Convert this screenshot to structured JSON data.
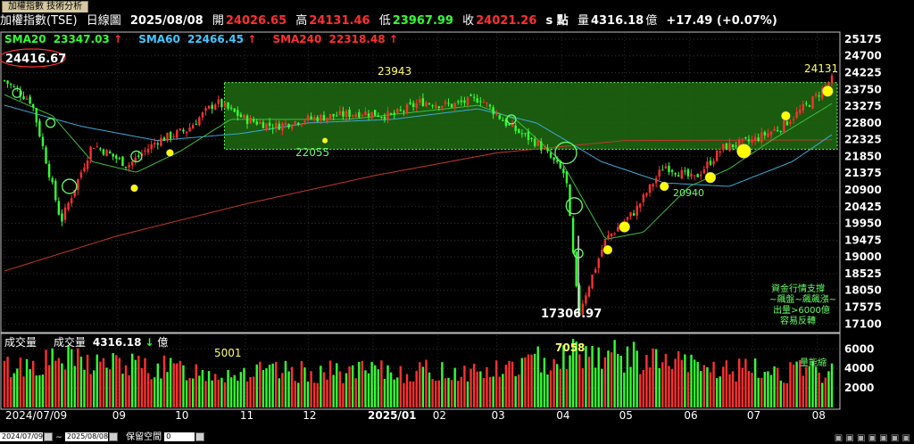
{
  "tab": {
    "label": "加權指數 技術分析"
  },
  "header": {
    "name": "加權指數(TSE)",
    "period": "日線圖",
    "date": "2025/08/08",
    "open_label": "開",
    "open": "24026.65",
    "high_label": "高",
    "high": "24131.46",
    "low_label": "低",
    "low": "23967.99",
    "close_label": "收",
    "close": "24021.26",
    "unit": "s 點",
    "volume_label": "量",
    "volume": "4316.18",
    "volume_unit": "億",
    "change": "+17.49 (+0.07%)"
  },
  "legend": {
    "sma20": {
      "label": "SMA20",
      "value": "23347.03",
      "arrow": "↑",
      "color": "#33ff33"
    },
    "sma60": {
      "label": "SMA60",
      "value": "22466.45",
      "arrow": "↑",
      "color": "#40c8ff"
    },
    "sma240": {
      "label": "SMA240",
      "value": "22318.48",
      "arrow": "↑",
      "color": "#ff3030"
    }
  },
  "volume_panel": {
    "title": "成交量",
    "legend_label": "成交量",
    "legend_value": "4316.18",
    "legend_arrow": "↓",
    "legend_unit": "億"
  },
  "annotations": {
    "prev_high": "24416.67",
    "box_top": "23943",
    "box_bottom": "22055",
    "last_high": "24131",
    "low_point": "17306.97",
    "low_2": "20940",
    "vol_label_1": "5001",
    "vol_label_2": "7058",
    "vol_note": "量能縮",
    "note_lines": [
      "資金行情支撐",
      "~飆盤~飆飆漲~",
      "出量>6000億",
      "容易反轉"
    ]
  },
  "colors": {
    "up": "#ff3030",
    "down": "#33ff33",
    "box": "#1f6b12",
    "box_border": "#66ff66",
    "marker": "#ffff00"
  },
  "chart_data": {
    "type": "line",
    "title": "加權指數(TSE) 日線圖",
    "price_axis": {
      "ticks": [
        25175,
        24700,
        24225,
        23750,
        23275,
        22800,
        22325,
        21850,
        21375,
        20900,
        20425,
        19950,
        19475,
        19000,
        18525,
        18050,
        17575,
        17100
      ],
      "range": [
        16880,
        25350
      ]
    },
    "volume_axis": {
      "ticks": [
        6000,
        4000,
        2000
      ],
      "range": [
        0,
        7400
      ]
    },
    "x_axis": {
      "start": "2024-07-09",
      "end": "2025-08-08",
      "labels": [
        "2024/07/09",
        "09",
        "10",
        "11",
        "12",
        "2025/01",
        "02",
        "03",
        "04",
        "05",
        "06",
        "07",
        "08"
      ]
    },
    "series": [
      {
        "name": "加權指數",
        "key": "close",
        "x": [
          "2024-07-09",
          "2024-07-22",
          "2024-08-05",
          "2024-08-20",
          "2024-09-06",
          "2024-09-20",
          "2024-10-04",
          "2024-10-18",
          "2024-11-01",
          "2024-11-15",
          "2024-11-29",
          "2024-12-13",
          "2024-12-27",
          "2025-01-10",
          "2025-01-24",
          "2025-02-07",
          "2025-02-21",
          "2025-03-07",
          "2025-03-21",
          "2025-04-03",
          "2025-04-09",
          "2025-04-22",
          "2025-05-06",
          "2025-05-20",
          "2025-06-03",
          "2025-06-17",
          "2025-07-01",
          "2025-07-15",
          "2025-07-29",
          "2025-08-08"
        ],
        "y": [
          24000,
          23400,
          20000,
          22200,
          21600,
          22300,
          22600,
          23400,
          22900,
          22700,
          22900,
          23000,
          23100,
          23000,
          23400,
          23300,
          23500,
          22700,
          22200,
          21300,
          17400,
          19500,
          20300,
          21600,
          21200,
          22100,
          22300,
          22700,
          23400,
          24021
        ]
      },
      {
        "name": "SMA20",
        "key": "sma20",
        "x": [
          "2024-07-09",
          "2024-08-01",
          "2024-08-20",
          "2024-09-10",
          "2024-10-01",
          "2024-10-25",
          "2024-11-20",
          "2024-12-20",
          "2025-01-20",
          "2025-02-20",
          "2025-03-10",
          "2025-04-01",
          "2025-04-22",
          "2025-05-10",
          "2025-06-01",
          "2025-06-20",
          "2025-07-10",
          "2025-08-08"
        ],
        "y": [
          23600,
          23000,
          21700,
          21400,
          22000,
          22900,
          22900,
          22900,
          23100,
          23300,
          22900,
          21700,
          19500,
          19700,
          21000,
          21500,
          22300,
          23347
        ]
      },
      {
        "name": "SMA60",
        "key": "sma60",
        "x": [
          "2024-07-09",
          "2024-08-15",
          "2024-09-20",
          "2024-10-30",
          "2024-12-01",
          "2025-01-10",
          "2025-02-20",
          "2025-03-20",
          "2025-04-20",
          "2025-05-20",
          "2025-06-20",
          "2025-07-20",
          "2025-08-08"
        ],
        "y": [
          23300,
          22700,
          22300,
          22500,
          22800,
          22900,
          23200,
          22800,
          21700,
          21100,
          21000,
          21700,
          22466
        ]
      },
      {
        "name": "SMA240",
        "key": "sma240",
        "x": [
          "2024-07-09",
          "2024-09-01",
          "2024-11-01",
          "2025-01-01",
          "2025-03-01",
          "2025-05-01",
          "2025-08-08"
        ],
        "y": [
          18600,
          19600,
          20500,
          21300,
          21950,
          22300,
          22318
        ]
      }
    ],
    "volume": {
      "x": [
        "2024-07-11",
        "2024-08-06",
        "2024-10-20",
        "2025-03-01",
        "2025-04-09",
        "2025-06-15",
        "2025-08-08"
      ],
      "values": [
        5001,
        5900,
        4300,
        4500,
        7058,
        4700,
        4316
      ]
    },
    "box": {
      "from": "2024-10-22",
      "to": "2025-08-08",
      "y_top": 23943,
      "y_bottom": 22055
    }
  }
}
